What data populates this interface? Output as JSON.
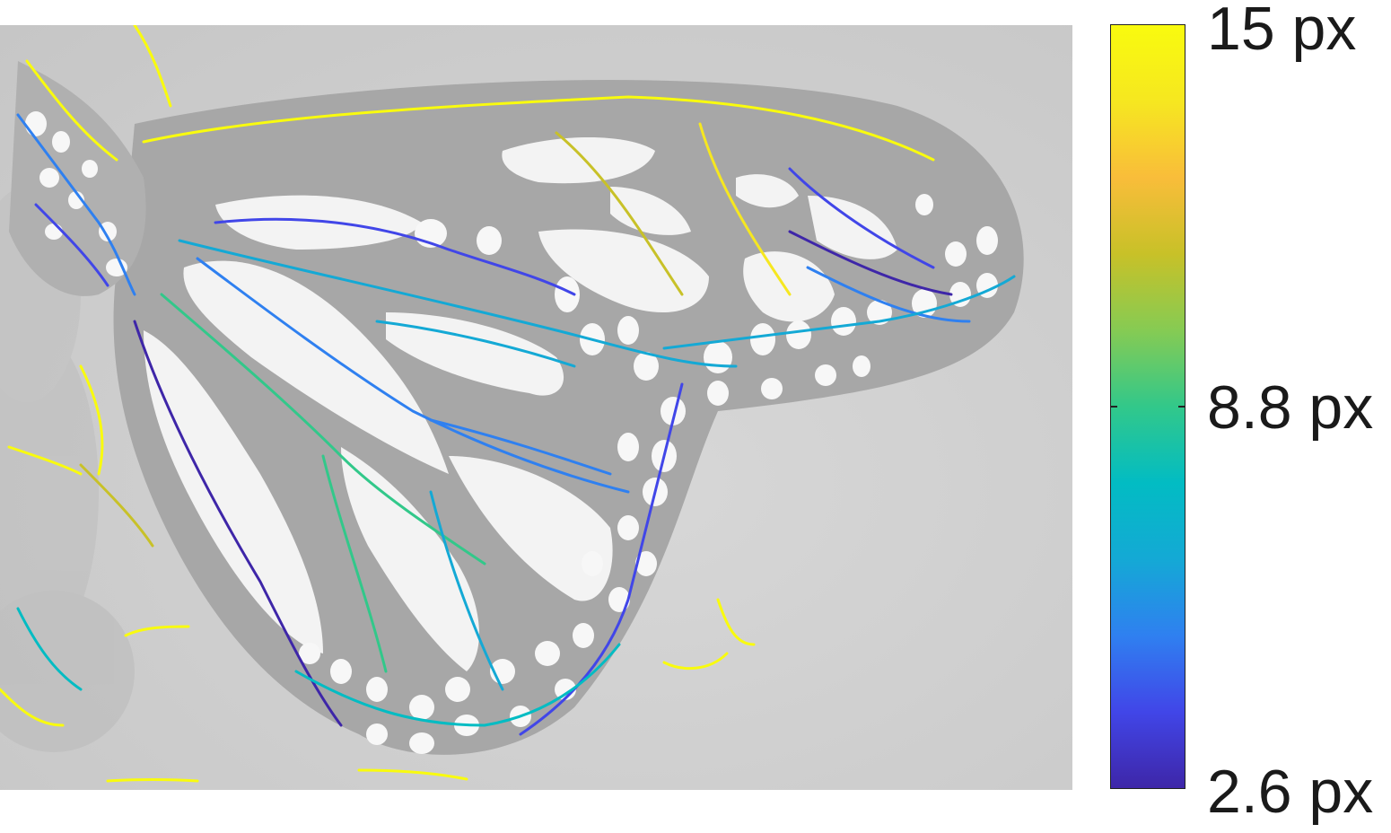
{
  "colorbar": {
    "labels": {
      "max": "15 px",
      "mid": "8.8 px",
      "min": "2.6 px"
    },
    "range": [
      2.6,
      15
    ],
    "mid_value": 8.8,
    "colormap": "parula",
    "stops": [
      "#3e26a8",
      "#4146e8",
      "#2f80f0",
      "#14a9d5",
      "#02bcc3",
      "#32c88a",
      "#86cb53",
      "#c8c128",
      "#f9bd3a",
      "#f6e720",
      "#f9fb0e"
    ]
  },
  "image": {
    "subject": "butterfly-wing-grayscale",
    "background": "#cdcdcd",
    "wing_fill": "#a9a9a9",
    "cell_fill": "#f4f4f4"
  }
}
